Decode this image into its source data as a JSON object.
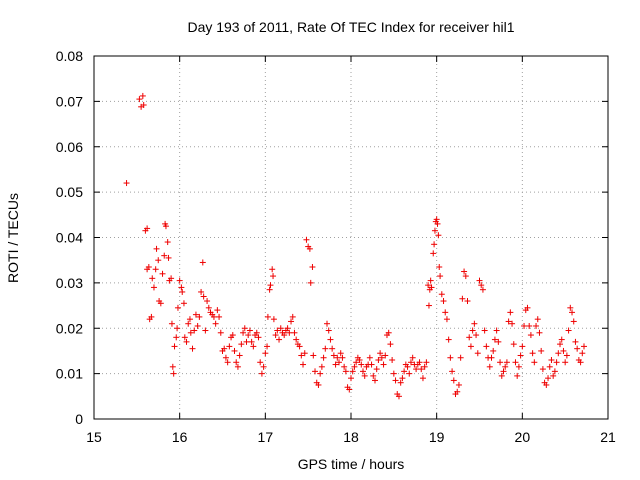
{
  "chart_data": {
    "type": "scatter",
    "title": "Day 193 of 2011, Rate Of TEC Index for receiver hil1",
    "xlabel": "GPS time / hours",
    "ylabel": "ROTI / TECUs",
    "xlim": [
      15,
      21
    ],
    "ylim": [
      0,
      0.08
    ],
    "xticks": [
      15,
      16,
      17,
      18,
      19,
      20,
      21
    ],
    "yticks": [
      0,
      0.01,
      0.02,
      0.03,
      0.04,
      0.05,
      0.06,
      0.07,
      0.08
    ],
    "xtick_labels": [
      "15",
      "16",
      "17",
      "18",
      "19",
      "20",
      "21"
    ],
    "ytick_labels": [
      "0",
      "0.01",
      "0.02",
      "0.03",
      "0.04",
      "0.05",
      "0.06",
      "0.07",
      "0.08"
    ],
    "grid": true,
    "marker": "+",
    "color": "#ee0000",
    "series": [
      {
        "name": "hil1",
        "points": [
          [
            15.38,
            0.052
          ],
          [
            15.53,
            0.0705
          ],
          [
            15.55,
            0.0688
          ],
          [
            15.57,
            0.0712
          ],
          [
            15.58,
            0.0692
          ],
          [
            15.6,
            0.0415
          ],
          [
            15.62,
            0.042
          ],
          [
            15.62,
            0.033
          ],
          [
            15.64,
            0.0335
          ],
          [
            15.65,
            0.022
          ],
          [
            15.67,
            0.0225
          ],
          [
            15.68,
            0.031
          ],
          [
            15.7,
            0.029
          ],
          [
            15.72,
            0.033
          ],
          [
            15.73,
            0.0375
          ],
          [
            15.75,
            0.035
          ],
          [
            15.76,
            0.026
          ],
          [
            15.78,
            0.0255
          ],
          [
            15.8,
            0.032
          ],
          [
            15.82,
            0.036
          ],
          [
            15.83,
            0.043
          ],
          [
            15.84,
            0.0425
          ],
          [
            15.86,
            0.039
          ],
          [
            15.87,
            0.0355
          ],
          [
            15.88,
            0.0305
          ],
          [
            15.9,
            0.031
          ],
          [
            15.91,
            0.021
          ],
          [
            15.92,
            0.0115
          ],
          [
            15.93,
            0.01
          ],
          [
            15.94,
            0.016
          ],
          [
            15.96,
            0.018
          ],
          [
            15.97,
            0.02
          ],
          [
            15.98,
            0.0245
          ],
          [
            16.0,
            0.0305
          ],
          [
            16.02,
            0.029
          ],
          [
            16.03,
            0.028
          ],
          [
            16.05,
            0.0255
          ],
          [
            16.06,
            0.018
          ],
          [
            16.08,
            0.017
          ],
          [
            16.1,
            0.021
          ],
          [
            16.12,
            0.022
          ],
          [
            16.13,
            0.019
          ],
          [
            16.15,
            0.0155
          ],
          [
            16.17,
            0.0195
          ],
          [
            16.19,
            0.023
          ],
          [
            16.21,
            0.0205
          ],
          [
            16.23,
            0.0225
          ],
          [
            16.25,
            0.028
          ],
          [
            16.27,
            0.0345
          ],
          [
            16.28,
            0.027
          ],
          [
            16.3,
            0.0195
          ],
          [
            16.32,
            0.026
          ],
          [
            16.34,
            0.0245
          ],
          [
            16.36,
            0.0235
          ],
          [
            16.38,
            0.023
          ],
          [
            16.4,
            0.0225
          ],
          [
            16.42,
            0.021
          ],
          [
            16.44,
            0.024
          ],
          [
            16.46,
            0.0225
          ],
          [
            16.48,
            0.019
          ],
          [
            16.5,
            0.015
          ],
          [
            16.52,
            0.0155
          ],
          [
            16.54,
            0.0135
          ],
          [
            16.56,
            0.0125
          ],
          [
            16.58,
            0.016
          ],
          [
            16.6,
            0.018
          ],
          [
            16.62,
            0.0185
          ],
          [
            16.64,
            0.015
          ],
          [
            16.66,
            0.0125
          ],
          [
            16.68,
            0.0115
          ],
          [
            16.7,
            0.014
          ],
          [
            16.72,
            0.0165
          ],
          [
            16.74,
            0.019
          ],
          [
            16.76,
            0.02
          ],
          [
            16.78,
            0.017
          ],
          [
            16.8,
            0.0185
          ],
          [
            16.82,
            0.0195
          ],
          [
            16.84,
            0.017
          ],
          [
            16.86,
            0.016
          ],
          [
            16.88,
            0.0185
          ],
          [
            16.9,
            0.019
          ],
          [
            16.92,
            0.018
          ],
          [
            16.94,
            0.0125
          ],
          [
            16.96,
            0.01
          ],
          [
            16.98,
            0.0115
          ],
          [
            17.0,
            0.0145
          ],
          [
            17.02,
            0.016
          ],
          [
            17.03,
            0.0225
          ],
          [
            17.05,
            0.0285
          ],
          [
            17.06,
            0.0295
          ],
          [
            17.08,
            0.033
          ],
          [
            17.09,
            0.0315
          ],
          [
            17.1,
            0.022
          ],
          [
            17.12,
            0.0185
          ],
          [
            17.14,
            0.0195
          ],
          [
            17.16,
            0.0175
          ],
          [
            17.18,
            0.02
          ],
          [
            17.2,
            0.019
          ],
          [
            17.22,
            0.0185
          ],
          [
            17.24,
            0.0195
          ],
          [
            17.26,
            0.02
          ],
          [
            17.28,
            0.019
          ],
          [
            17.3,
            0.0215
          ],
          [
            17.32,
            0.0225
          ],
          [
            17.34,
            0.019
          ],
          [
            17.36,
            0.0175
          ],
          [
            17.38,
            0.0165
          ],
          [
            17.4,
            0.016
          ],
          [
            17.42,
            0.014
          ],
          [
            17.44,
            0.012
          ],
          [
            17.46,
            0.0145
          ],
          [
            17.48,
            0.0395
          ],
          [
            17.5,
            0.038
          ],
          [
            17.52,
            0.0375
          ],
          [
            17.53,
            0.03
          ],
          [
            17.55,
            0.0335
          ],
          [
            17.56,
            0.014
          ],
          [
            17.58,
            0.0105
          ],
          [
            17.6,
            0.008
          ],
          [
            17.62,
            0.0075
          ],
          [
            17.64,
            0.01
          ],
          [
            17.66,
            0.0115
          ],
          [
            17.68,
            0.0135
          ],
          [
            17.7,
            0.0155
          ],
          [
            17.72,
            0.021
          ],
          [
            17.74,
            0.0195
          ],
          [
            17.76,
            0.0175
          ],
          [
            17.78,
            0.0155
          ],
          [
            17.8,
            0.014
          ],
          [
            17.82,
            0.012
          ],
          [
            17.84,
            0.0135
          ],
          [
            17.86,
            0.0125
          ],
          [
            17.88,
            0.0145
          ],
          [
            17.9,
            0.0135
          ],
          [
            17.92,
            0.0115
          ],
          [
            17.94,
            0.0105
          ],
          [
            17.96,
            0.007
          ],
          [
            17.98,
            0.0065
          ],
          [
            18.0,
            0.009
          ],
          [
            18.02,
            0.0105
          ],
          [
            18.04,
            0.0115
          ],
          [
            18.06,
            0.0125
          ],
          [
            18.08,
            0.0135
          ],
          [
            18.1,
            0.013
          ],
          [
            18.12,
            0.012
          ],
          [
            18.14,
            0.0105
          ],
          [
            18.16,
            0.0095
          ],
          [
            18.18,
            0.0115
          ],
          [
            18.2,
            0.012
          ],
          [
            18.22,
            0.0135
          ],
          [
            18.24,
            0.012
          ],
          [
            18.26,
            0.0095
          ],
          [
            18.28,
            0.0085
          ],
          [
            18.3,
            0.011
          ],
          [
            18.32,
            0.013
          ],
          [
            18.34,
            0.0145
          ],
          [
            18.36,
            0.0135
          ],
          [
            18.38,
            0.012
          ],
          [
            18.4,
            0.014
          ],
          [
            18.42,
            0.0185
          ],
          [
            18.44,
            0.019
          ],
          [
            18.46,
            0.0165
          ],
          [
            18.48,
            0.013
          ],
          [
            18.5,
            0.01
          ],
          [
            18.52,
            0.0085
          ],
          [
            18.54,
            0.0055
          ],
          [
            18.56,
            0.005
          ],
          [
            18.58,
            0.008
          ],
          [
            18.6,
            0.009
          ],
          [
            18.62,
            0.0105
          ],
          [
            18.64,
            0.012
          ],
          [
            18.66,
            0.0115
          ],
          [
            18.68,
            0.01
          ],
          [
            18.7,
            0.0125
          ],
          [
            18.72,
            0.0135
          ],
          [
            18.74,
            0.012
          ],
          [
            18.76,
            0.011
          ],
          [
            18.78,
            0.012
          ],
          [
            18.8,
            0.0125
          ],
          [
            18.82,
            0.011
          ],
          [
            18.84,
            0.009
          ],
          [
            18.86,
            0.0115
          ],
          [
            18.88,
            0.0125
          ],
          [
            18.9,
            0.0295
          ],
          [
            18.91,
            0.025
          ],
          [
            18.92,
            0.0285
          ],
          [
            18.93,
            0.0305
          ],
          [
            18.94,
            0.029
          ],
          [
            18.96,
            0.0365
          ],
          [
            18.97,
            0.0385
          ],
          [
            18.98,
            0.0415
          ],
          [
            18.99,
            0.0435
          ],
          [
            19.0,
            0.044
          ],
          [
            19.01,
            0.043
          ],
          [
            19.02,
            0.0405
          ],
          [
            19.03,
            0.0335
          ],
          [
            19.04,
            0.0315
          ],
          [
            19.06,
            0.0275
          ],
          [
            19.08,
            0.026
          ],
          [
            19.1,
            0.0235
          ],
          [
            19.12,
            0.022
          ],
          [
            19.14,
            0.0175
          ],
          [
            19.16,
            0.0135
          ],
          [
            19.18,
            0.0105
          ],
          [
            19.2,
            0.0085
          ],
          [
            19.22,
            0.0055
          ],
          [
            19.24,
            0.006
          ],
          [
            19.26,
            0.0075
          ],
          [
            19.28,
            0.0135
          ],
          [
            19.3,
            0.0265
          ],
          [
            19.32,
            0.0325
          ],
          [
            19.34,
            0.0315
          ],
          [
            19.36,
            0.026
          ],
          [
            19.38,
            0.018
          ],
          [
            19.4,
            0.016
          ],
          [
            19.42,
            0.0195
          ],
          [
            19.44,
            0.021
          ],
          [
            19.46,
            0.0185
          ],
          [
            19.48,
            0.0145
          ],
          [
            19.5,
            0.0305
          ],
          [
            19.52,
            0.0295
          ],
          [
            19.54,
            0.0285
          ],
          [
            19.56,
            0.0195
          ],
          [
            19.58,
            0.016
          ],
          [
            19.6,
            0.0135
          ],
          [
            19.62,
            0.0115
          ],
          [
            19.64,
            0.0135
          ],
          [
            19.66,
            0.015
          ],
          [
            19.68,
            0.0175
          ],
          [
            19.7,
            0.0195
          ],
          [
            19.72,
            0.017
          ],
          [
            19.74,
            0.0125
          ],
          [
            19.76,
            0.0095
          ],
          [
            19.78,
            0.0105
          ],
          [
            19.8,
            0.0115
          ],
          [
            19.82,
            0.0125
          ],
          [
            19.84,
            0.0215
          ],
          [
            19.86,
            0.0235
          ],
          [
            19.88,
            0.021
          ],
          [
            19.9,
            0.0165
          ],
          [
            19.92,
            0.0125
          ],
          [
            19.94,
            0.0095
          ],
          [
            19.96,
            0.0115
          ],
          [
            19.98,
            0.014
          ],
          [
            20.0,
            0.016
          ],
          [
            20.02,
            0.0205
          ],
          [
            20.04,
            0.024
          ],
          [
            20.06,
            0.0245
          ],
          [
            20.08,
            0.0205
          ],
          [
            20.1,
            0.0185
          ],
          [
            20.12,
            0.0145
          ],
          [
            20.14,
            0.0125
          ],
          [
            20.16,
            0.0205
          ],
          [
            20.18,
            0.022
          ],
          [
            20.2,
            0.019
          ],
          [
            20.22,
            0.015
          ],
          [
            20.24,
            0.011
          ],
          [
            20.26,
            0.008
          ],
          [
            20.28,
            0.0075
          ],
          [
            20.3,
            0.009
          ],
          [
            20.32,
            0.0115
          ],
          [
            20.34,
            0.013
          ],
          [
            20.36,
            0.0095
          ],
          [
            20.38,
            0.0105
          ],
          [
            20.4,
            0.0125
          ],
          [
            20.42,
            0.0145
          ],
          [
            20.44,
            0.0165
          ],
          [
            20.46,
            0.0175
          ],
          [
            20.48,
            0.015
          ],
          [
            20.5,
            0.0125
          ],
          [
            20.52,
            0.014
          ],
          [
            20.54,
            0.0195
          ],
          [
            20.56,
            0.0245
          ],
          [
            20.58,
            0.0235
          ],
          [
            20.6,
            0.0215
          ],
          [
            20.62,
            0.017
          ],
          [
            20.64,
            0.0155
          ],
          [
            20.66,
            0.013
          ],
          [
            20.68,
            0.0125
          ],
          [
            20.7,
            0.0145
          ],
          [
            20.72,
            0.016
          ]
        ]
      }
    ]
  }
}
